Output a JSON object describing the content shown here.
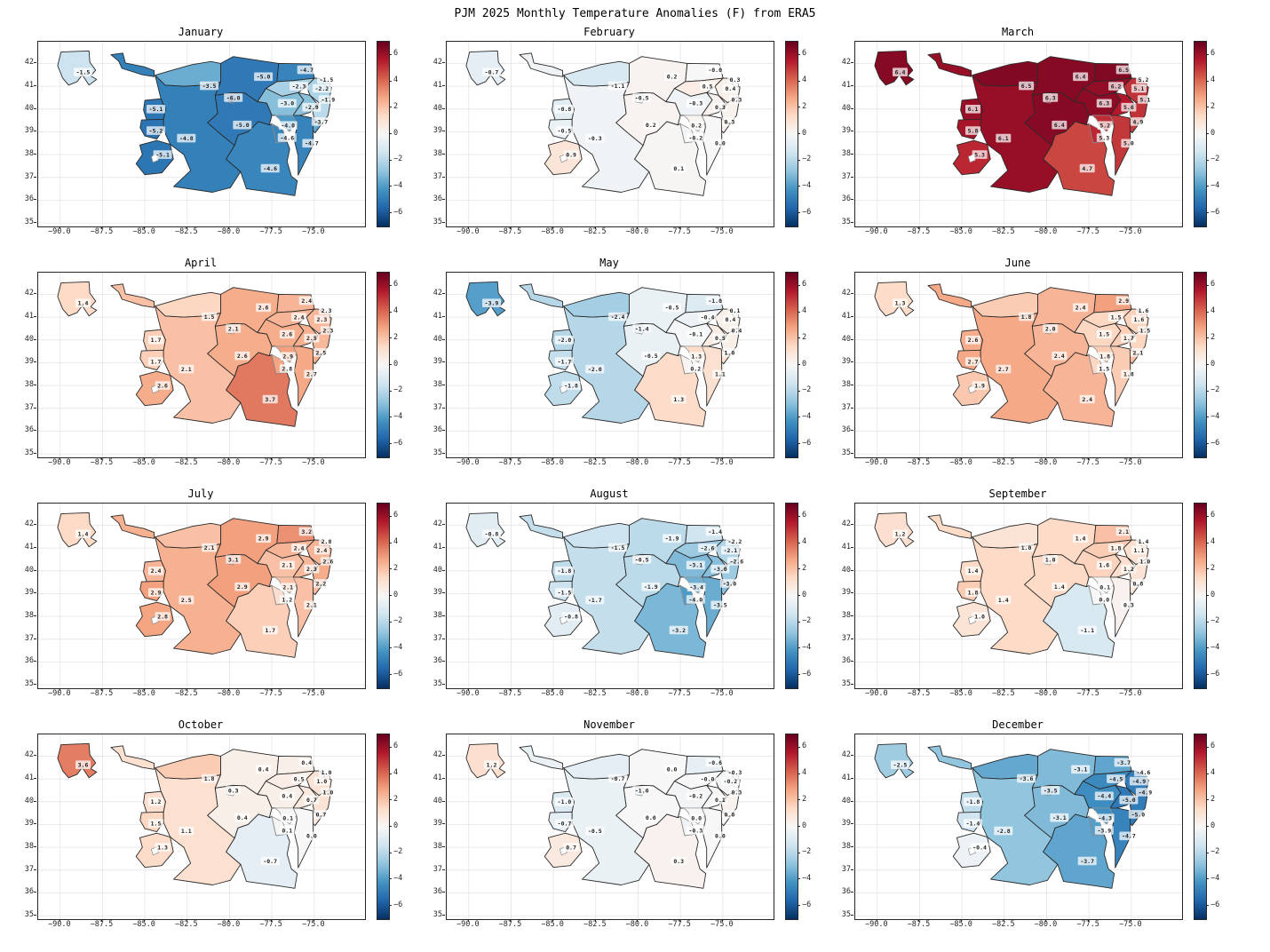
{
  "suptitle": "PJM 2025 Monthly Temperature Anomalies (F) from ERA5",
  "chart_data": {
    "type": "heatmap",
    "subtype": "choropleth-map-grid",
    "title": "PJM 2025 Monthly Temperature Anomalies (F) from ERA5",
    "layout_grid": "4 rows x 3 columns",
    "x_axis": {
      "label": "",
      "tick_labels": [
        "−90.0",
        "−87.5",
        "−85.0",
        "−82.5",
        "−80.0",
        "−77.5",
        "−75.0"
      ],
      "tick_values": [
        -90,
        -87.5,
        -85,
        -82.5,
        -80,
        -77.5,
        -75
      ]
    },
    "y_axis": {
      "label": "",
      "tick_labels": [
        "42",
        "41",
        "40",
        "39",
        "38",
        "37",
        "36",
        "35"
      ],
      "tick_values": [
        42,
        41,
        40,
        39,
        38,
        37,
        36,
        35
      ]
    },
    "colorbar": {
      "tick_labels": [
        "6",
        "4",
        "2",
        "0",
        "−2",
        "−4",
        "−6"
      ],
      "tick_values": [
        6,
        4,
        2,
        0,
        -2,
        -4,
        -6
      ],
      "vmin": -7,
      "vmax": 7,
      "colormap": "RdBu_r"
    },
    "colormap_stops": [
      "#053061",
      "#2166ac",
      "#4393c3",
      "#92c5de",
      "#d1e5f0",
      "#f7f7f7",
      "#fddbc7",
      "#f4a582",
      "#d6604d",
      "#b2182b",
      "#67001f"
    ],
    "zone_count": 21,
    "subplots": [
      {
        "title": "January",
        "values": [
          "-1.5",
          "-3.5",
          "-6.0",
          "-5.1",
          "-5.2",
          "-4.8",
          "-5.1",
          "-5.0",
          "-5.0",
          "-4.7",
          "-2.3",
          "-3.0",
          "-2.9",
          "-1.5",
          "-2.2",
          "-1.9",
          "-3.7",
          "-4.0",
          "-4.6",
          "-4.7",
          "-4.6"
        ]
      },
      {
        "title": "February",
        "values": [
          "-0.7",
          "-1.1",
          "-0.5",
          "-0.8",
          "-0.5",
          "-0.3",
          "0.9",
          "0.2",
          "0.2",
          "-0.0",
          "0.5",
          "-0.3",
          "0.3",
          "0.3",
          "0.4",
          "0.3",
          "0.3",
          "0.2",
          "-0.2",
          "0.0",
          "0.1"
        ]
      },
      {
        "title": "March",
        "values": [
          "6.4",
          "6.5",
          "6.3",
          "6.1",
          "5.8",
          "6.1",
          "5.3",
          "6.4",
          "6.4",
          "6.5",
          "6.2",
          "6.3",
          "5.6",
          "5.2",
          "5.1",
          "5.1",
          "4.9",
          "5.2",
          "5.3",
          "5.0",
          "4.7"
        ]
      },
      {
        "title": "April",
        "values": [
          "1.4",
          "1.5",
          "2.1",
          "1.7",
          "1.7",
          "2.1",
          "2.6",
          "2.6",
          "2.6",
          "2.4",
          "2.4",
          "2.6",
          "2.5",
          "2.3",
          "2.3",
          "2.3",
          "2.5",
          "2.9",
          "2.8",
          "2.7",
          "3.7"
        ]
      },
      {
        "title": "May",
        "values": [
          "-3.9",
          "-2.4",
          "-1.4",
          "-2.0",
          "-1.7",
          "-2.0",
          "-1.8",
          "-0.5",
          "-0.5",
          "-1.0",
          "-0.4",
          "-0.1",
          "0.5",
          "0.1",
          "0.4",
          "0.4",
          "1.0",
          "1.3",
          "0.2",
          "1.1",
          "1.3"
        ]
      },
      {
        "title": "June",
        "values": [
          "1.3",
          "1.8",
          "2.0",
          "2.6",
          "2.7",
          "2.7",
          "1.9",
          "2.4",
          "2.4",
          "2.9",
          "1.5",
          "1.5",
          "1.7",
          "1.6",
          "1.6",
          "1.5",
          "2.1",
          "1.8",
          "1.5",
          "1.8",
          "2.4"
        ]
      },
      {
        "title": "July",
        "values": [
          "1.4",
          "2.1",
          "3.1",
          "2.4",
          "2.9",
          "2.5",
          "2.8",
          "2.9",
          "2.9",
          "3.2",
          "2.4",
          "2.1",
          "2.3",
          "2.8",
          "2.4",
          "2.6",
          "2.2",
          "2.1",
          "1.2",
          "2.1",
          "1.7"
        ]
      },
      {
        "title": "August",
        "values": [
          "-0.8",
          "-1.5",
          "-0.5",
          "-1.8",
          "-1.5",
          "-1.7",
          "-0.8",
          "-1.9",
          "-1.9",
          "-1.4",
          "-2.6",
          "-3.1",
          "-3.0",
          "-2.2",
          "-2.1",
          "-2.6",
          "-3.0",
          "-3.4",
          "-4.0",
          "-3.5",
          "-3.2"
        ]
      },
      {
        "title": "September",
        "values": [
          "1.2",
          "1.0",
          "1.0",
          "1.4",
          "1.8",
          "1.4",
          "1.0",
          "1.4",
          "1.4",
          "2.1",
          "1.8",
          "1.6",
          "1.2",
          "1.4",
          "1.1",
          "1.0",
          "0.8",
          "0.1",
          "0.0",
          "0.3",
          "-1.1"
        ]
      },
      {
        "title": "October",
        "values": [
          "3.6",
          "1.8",
          "0.3",
          "1.2",
          "1.5",
          "1.1",
          "1.3",
          "0.4",
          "0.4",
          "0.4",
          "0.5",
          "0.4",
          "0.7",
          "1.0",
          "1.0",
          "1.0",
          "0.7",
          "0.1",
          "0.1",
          "0.0",
          "-0.7"
        ]
      },
      {
        "title": "November",
        "values": [
          "1.2",
          "-0.7",
          "-1.0",
          "-1.0",
          "-0.7",
          "-0.5",
          "0.7",
          "0.0",
          "0.0",
          "-0.6",
          "-0.0",
          "-0.2",
          "0.1",
          "-0.3",
          "-0.2",
          "0.3",
          "0.0",
          "0.0",
          "-0.3",
          "0.0",
          "0.3"
        ]
      },
      {
        "title": "December",
        "values": [
          "-2.5",
          "-3.6",
          "-3.5",
          "-1.8",
          "-1.4",
          "-2.8",
          "-0.4",
          "-3.1",
          "-3.1",
          "-3.7",
          "-4.5",
          "-4.4",
          "-5.0",
          "-4.6",
          "-4.9",
          "-4.9",
          "-5.0",
          "-4.3",
          "-3.9",
          "-4.7",
          "-3.7"
        ]
      }
    ]
  }
}
